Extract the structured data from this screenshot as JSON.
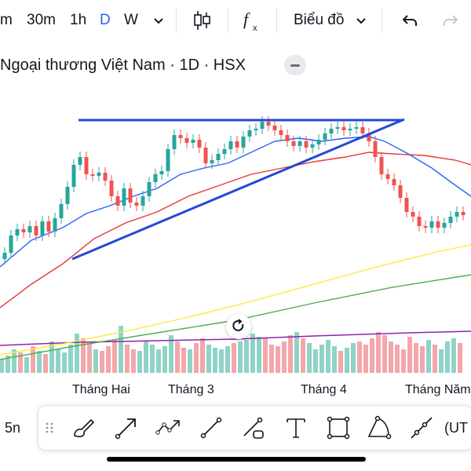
{
  "toolbar": {
    "intervals": [
      "m",
      "30m",
      "1h",
      "D",
      "W"
    ],
    "active_interval": "D",
    "chart_type_label": "Biểu đồ",
    "icons": [
      "chevron-down-icon",
      "candles-icon",
      "indicators-icon",
      "chevron-down-icon",
      "undo-icon",
      "redo-icon"
    ]
  },
  "legend": {
    "symbol": "Ngoại thương Việt Nam · 1D · HSX"
  },
  "colors": {
    "up": "#26a69a",
    "down": "#ef5350",
    "vol_up": "#8fd3c6",
    "vol_down": "#f3a7aa",
    "ma_fast": "#2962ff",
    "ma_mid": "#e53935",
    "ma_slow": "#ffe83a",
    "ma_long": "#4caf50",
    "vol_ma": "#8e24aa",
    "trendline": "#2448d8"
  },
  "xaxis": {
    "labels": [
      "Tháng Hai",
      "Tháng 3",
      "Tháng 4",
      "Tháng Năm"
    ]
  },
  "bottom": {
    "left_label": "5n",
    "right_label": "(UT",
    "tools": [
      "drag-handle-icon",
      "brush-icon",
      "arrow-icon",
      "path-icon",
      "trend-line-icon",
      "anchored-line-icon",
      "text-tool-icon",
      "rectangle-icon",
      "arc-icon",
      "ray-icon"
    ]
  },
  "chart_data": {
    "type": "candlestick",
    "x_groups": [
      "Tháng Hai",
      "Tháng 3",
      "Tháng 4",
      "Tháng Năm"
    ],
    "indicators": [
      "MA fast (blue)",
      "MA mid (red)",
      "MA slow (yellow)",
      "MA long (green)",
      "Volume MA (purple)"
    ],
    "annotations": [
      "horizontal resistance line",
      "ascending trendline"
    ],
    "grid": false
  }
}
